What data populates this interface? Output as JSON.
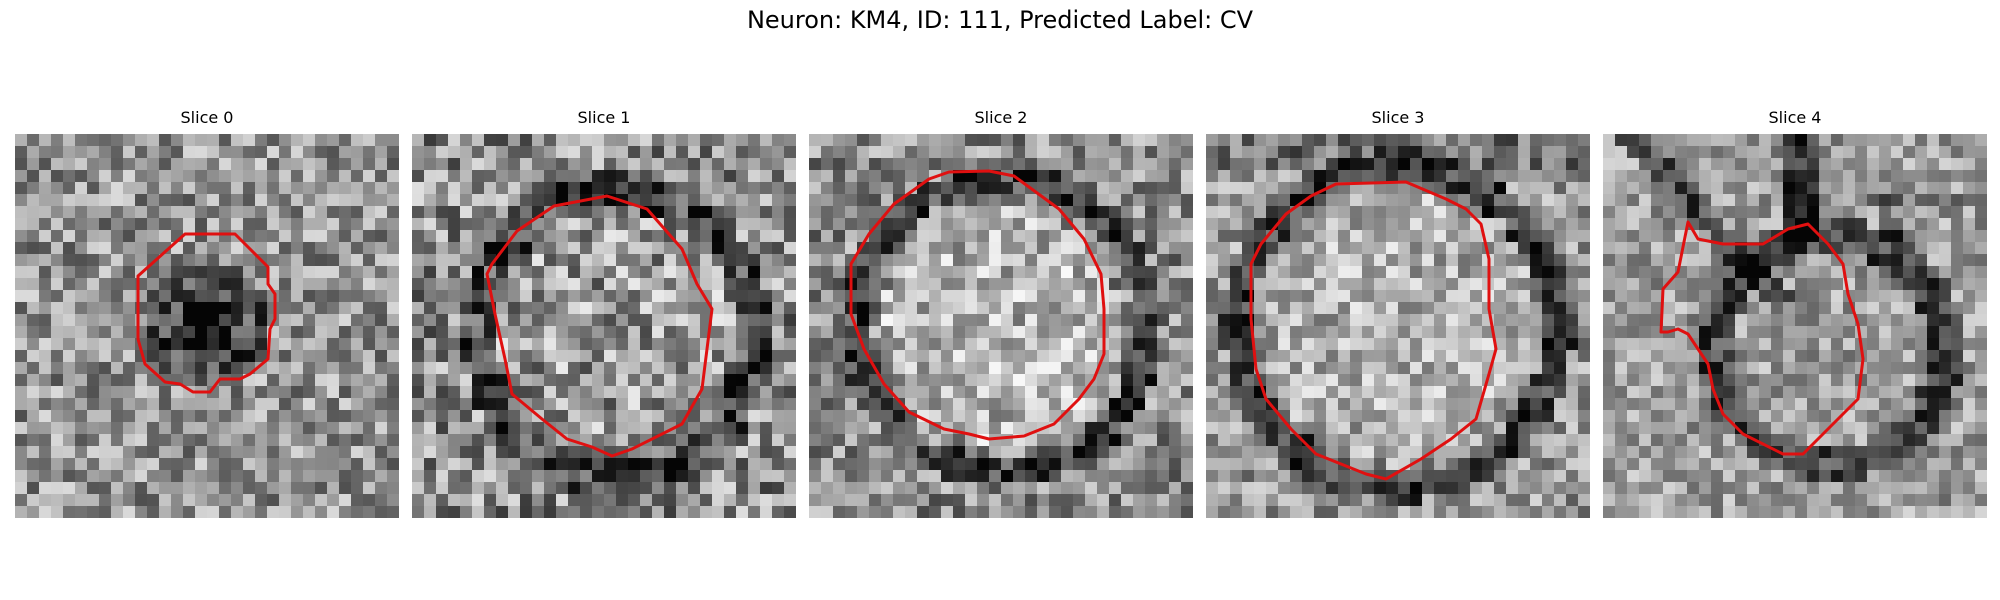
{
  "figure": {
    "title": "Neuron: KM4, ID: 111, Predicted Label: CV"
  },
  "style": {
    "contour_color": "#e01010",
    "colormap": "grayscale"
  },
  "panels": [
    {
      "label": "Slice 0",
      "shape": "dark-blob"
    },
    {
      "label": "Slice 1",
      "shape": "ring"
    },
    {
      "label": "Slice 2",
      "shape": "ring"
    },
    {
      "label": "Slice 3",
      "shape": "ring"
    },
    {
      "label": "Slice 4",
      "shape": "ring-with-branch"
    }
  ]
}
